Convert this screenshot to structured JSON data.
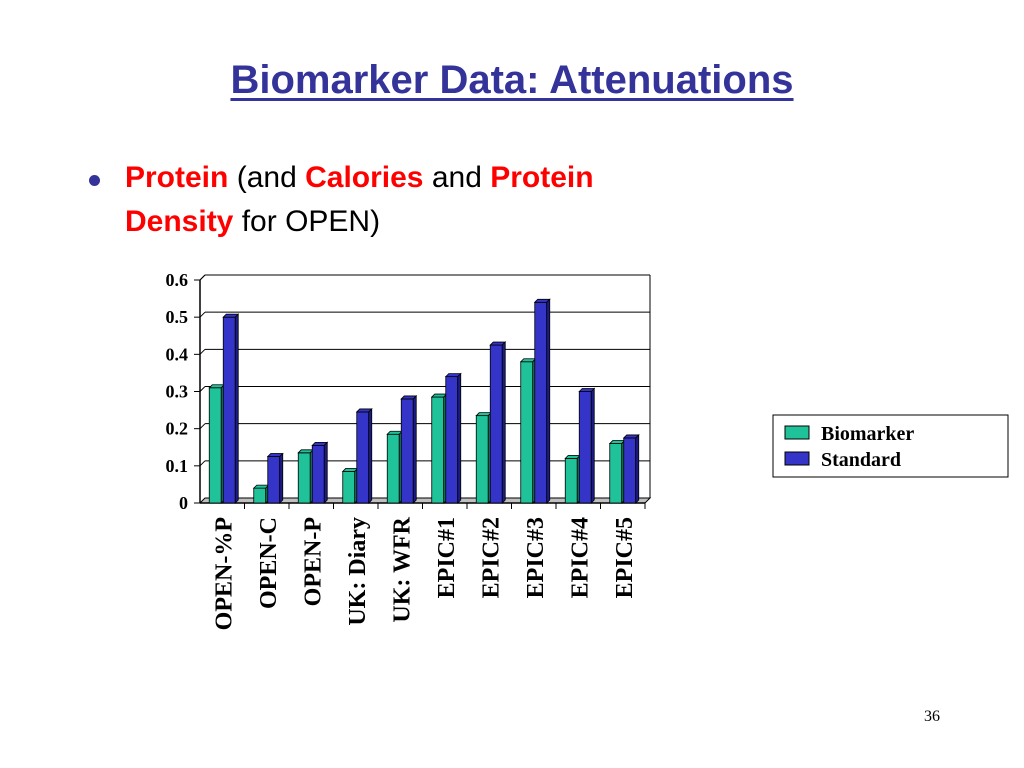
{
  "slide": {
    "title": "Biomarker Data: Attenuations",
    "bullet": {
      "w1": "Protein",
      "w2": "(and",
      "w3": "Calories",
      "w4": "and",
      "w5": "Protein",
      "w6": "Density",
      "w7": "for OPEN)"
    },
    "page_number": "36"
  },
  "colors": {
    "title": "#33339a",
    "highlight": "#ff0000",
    "biomarker": "#20c29a",
    "standard": "#3434c8"
  },
  "chart_data": {
    "type": "bar",
    "categories": [
      "OPEN-%P",
      "OPEN-C",
      "OPEN-P",
      "UK: Diary",
      "UK: WFR",
      "EPIC#1",
      "EPIC#2",
      "EPIC#3",
      "EPIC#4",
      "EPIC#5"
    ],
    "series": [
      {
        "name": "Biomarker",
        "values": [
          0.31,
          0.04,
          0.135,
          0.085,
          0.185,
          0.285,
          0.235,
          0.38,
          0.12,
          0.16
        ]
      },
      {
        "name": "Standard",
        "values": [
          0.5,
          0.125,
          0.155,
          0.245,
          0.28,
          0.34,
          0.425,
          0.54,
          0.3,
          0.175
        ]
      }
    ],
    "yticks": [
      "0",
      "0.1",
      "0.2",
      "0.3",
      "0.4",
      "0.5",
      "0.6"
    ],
    "ylim": [
      0,
      0.6
    ],
    "grid": true,
    "legend_position": "right"
  }
}
